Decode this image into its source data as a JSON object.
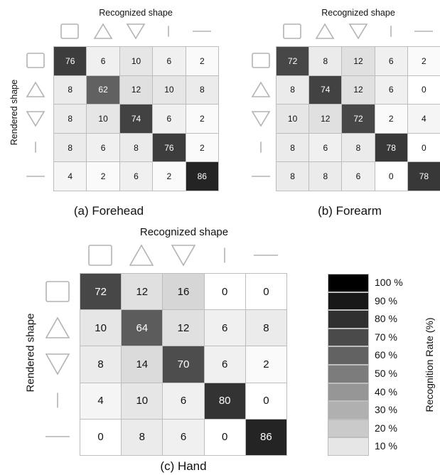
{
  "chart_data": [
    {
      "type": "heatmap",
      "title": "Forehead",
      "caption": "(a) Forehead",
      "xlabel": "Recognized shape",
      "ylabel": "Rendered shape",
      "categories": [
        "square",
        "triangle",
        "inverted-triangle",
        "vertical-line",
        "horizontal-line"
      ],
      "values": [
        [
          76,
          6,
          10,
          6,
          2
        ],
        [
          8,
          62,
          12,
          10,
          8
        ],
        [
          8,
          10,
          74,
          6,
          2
        ],
        [
          8,
          6,
          8,
          76,
          2
        ],
        [
          4,
          2,
          6,
          2,
          86
        ]
      ]
    },
    {
      "type": "heatmap",
      "title": "Forearm",
      "caption": "(b) Forearm",
      "xlabel": "Recognized shape",
      "ylabel": "",
      "categories": [
        "square",
        "triangle",
        "inverted-triangle",
        "vertical-line",
        "horizontal-line"
      ],
      "values": [
        [
          72,
          8,
          12,
          6,
          2
        ],
        [
          8,
          74,
          12,
          6,
          0
        ],
        [
          10,
          12,
          72,
          2,
          4
        ],
        [
          8,
          6,
          8,
          78,
          0
        ],
        [
          8,
          8,
          6,
          0,
          78
        ]
      ]
    },
    {
      "type": "heatmap",
      "title": "Hand",
      "caption": "(c) Hand",
      "xlabel": "Recognized shape",
      "ylabel": "Rendered shape",
      "categories": [
        "square",
        "triangle",
        "inverted-triangle",
        "vertical-line",
        "horizontal-line"
      ],
      "values": [
        [
          72,
          12,
          16,
          0,
          0
        ],
        [
          10,
          64,
          12,
          6,
          8
        ],
        [
          8,
          14,
          70,
          6,
          2
        ],
        [
          4,
          10,
          6,
          80,
          0
        ],
        [
          0,
          8,
          6,
          0,
          86
        ]
      ]
    }
  ],
  "legend": {
    "title": "Recognition Rate (%)",
    "levels": [
      "100 %",
      "90 %",
      "80 %",
      "70 %",
      "60 %",
      "50 %",
      "40 %",
      "30 %",
      "20 %",
      "10 %"
    ],
    "colors": [
      "#000000",
      "#181818",
      "#303030",
      "#4a4a4a",
      "#626262",
      "#7c7c7c",
      "#969696",
      "#b0b0b0",
      "#cacaca",
      "#e6e6e6"
    ]
  }
}
